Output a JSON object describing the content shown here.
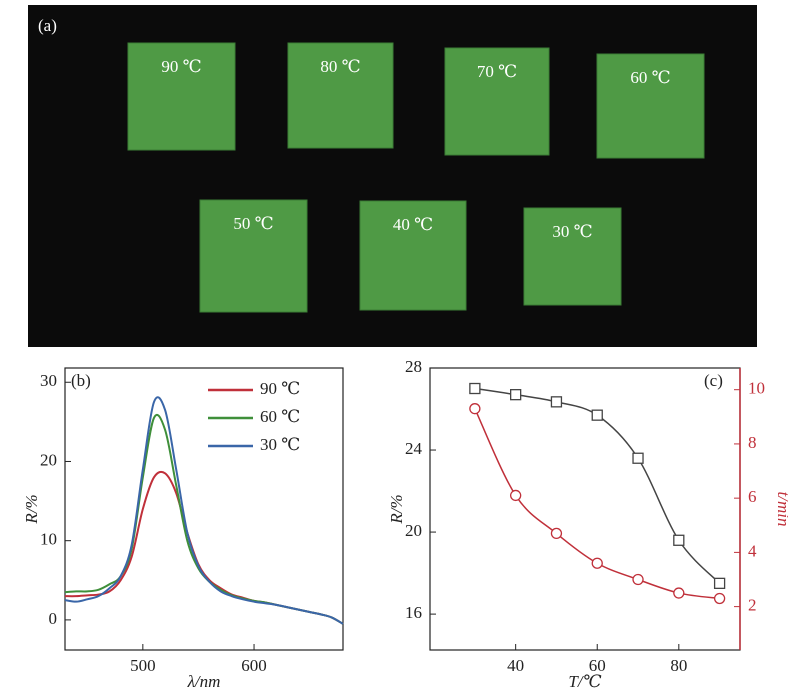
{
  "photo": {
    "label": "(a)",
    "samples": [
      "90 ℃",
      "80 ℃",
      "70 ℃",
      "60 ℃",
      "50 ℃",
      "40 ℃",
      "30 ℃"
    ]
  },
  "chart_data": [
    {
      "type": "line",
      "label": "(b)",
      "ylabel": "R/%",
      "xlabel": "λ/nm",
      "x": [
        430,
        440,
        450,
        460,
        470,
        480,
        490,
        500,
        510,
        520,
        530,
        540,
        550,
        560,
        570,
        580,
        590,
        600,
        610,
        620,
        630,
        640,
        650,
        660,
        670,
        680
      ],
      "series": [
        {
          "name": "90 ℃",
          "color": "#c0303a",
          "values": [
            3,
            3,
            3.1,
            3.2,
            3.6,
            5,
            8,
            14,
            18,
            18.5,
            16,
            11,
            7,
            5,
            4,
            3.2,
            2.8,
            2.4,
            2.2,
            1.9,
            1.6,
            1.3,
            1,
            0.7,
            0.3,
            -0.5
          ]
        },
        {
          "name": "60 ℃",
          "color": "#3f8f3a",
          "values": [
            3.5,
            3.6,
            3.6,
            3.8,
            4.5,
            5.5,
            9,
            18,
            25.5,
            24,
            17,
            10,
            6.5,
            4.8,
            3.8,
            3.1,
            2.7,
            2.4,
            2.2,
            1.9,
            1.6,
            1.3,
            1,
            0.7,
            0.3,
            -0.5
          ]
        },
        {
          "name": "30 ℃",
          "color": "#3a66a8",
          "values": [
            2.5,
            2.3,
            2.6,
            3,
            4,
            5.5,
            9.5,
            19,
            27.5,
            26.5,
            19,
            11,
            6.8,
            4.8,
            3.6,
            3,
            2.6,
            2.3,
            2.1,
            1.9,
            1.6,
            1.3,
            1,
            0.7,
            0.3,
            -0.5
          ]
        }
      ],
      "xlim": [
        430,
        680
      ],
      "xticks": [
        500,
        600
      ],
      "ylim": [
        -3.8,
        31.8
      ],
      "yticks": [
        0,
        10,
        20,
        30
      ],
      "legend": "upper right"
    },
    {
      "type": "line",
      "label": "(c)",
      "ylabel": "R/%",
      "xlabel": "T/℃",
      "y2label": "t/min",
      "x": [
        30,
        40,
        50,
        60,
        70,
        80,
        90
      ],
      "series": [
        {
          "name": "R",
          "color": "#444444",
          "marker": "square",
          "values": [
            27.0,
            26.7,
            26.35,
            25.7,
            23.6,
            19.6,
            17.5
          ]
        },
        {
          "name": "t",
          "color": "#c0303a",
          "marker": "circle",
          "axis": "y2",
          "values": [
            9.3,
            6.1,
            4.7,
            3.6,
            3.0,
            2.5,
            2.3
          ]
        }
      ],
      "xlim": [
        19,
        95
      ],
      "xticks": [
        40,
        60,
        80
      ],
      "ylim": [
        14.25,
        28
      ],
      "yticks": [
        16,
        20,
        24,
        28
      ],
      "y2lim": [
        0.4,
        10.8
      ],
      "y2ticks": [
        2,
        4,
        6,
        8,
        10
      ],
      "y2color": "#c0303a"
    }
  ]
}
